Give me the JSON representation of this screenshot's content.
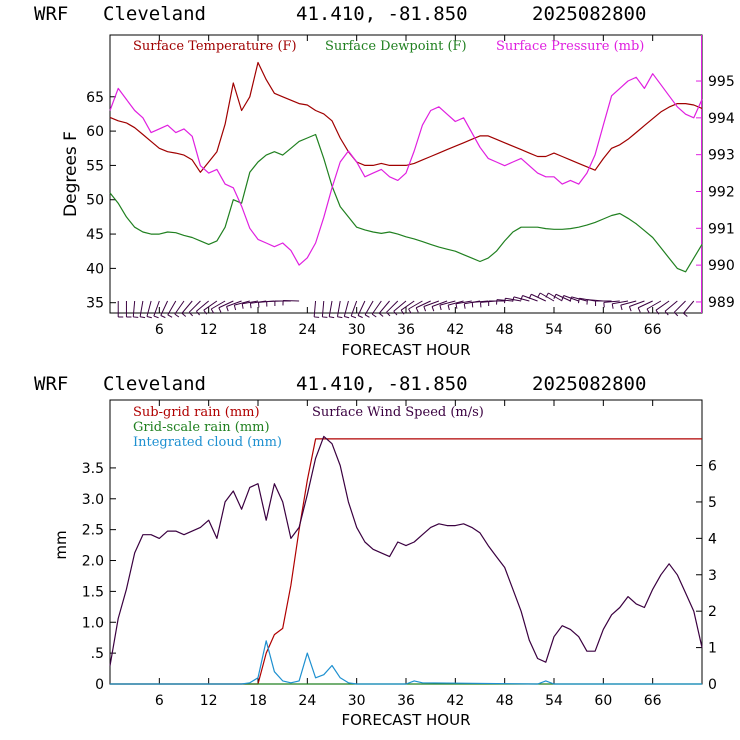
{
  "colors": {
    "temperature": "#a00000",
    "dewpoint": "#208020",
    "pressure": "#e020e0",
    "subgrid": "#b00000",
    "gridscale": "#208020",
    "cloud": "#1e90d0",
    "wind": "#3a0040",
    "barbs": "#3a0040"
  },
  "chart_data": [
    {
      "type": "line",
      "header": {
        "model": "WRF",
        "city": "Cleveland",
        "coords": "41.410, -81.850",
        "run": "2025082800"
      },
      "xlabel": "FORECAST HOUR",
      "ylabel": "Degrees F",
      "xlim": [
        0,
        72
      ],
      "x_ticks": [
        6,
        12,
        18,
        24,
        30,
        36,
        42,
        48,
        54,
        60,
        66
      ],
      "x_tick_labels": [
        "6",
        "12",
        "18",
        "24",
        "30",
        "36",
        "42",
        "48",
        "54",
        "60",
        "66"
      ],
      "ylim_left": [
        33.5,
        74.0
      ],
      "y_ticks_left": [
        35,
        40,
        45,
        50,
        55,
        60,
        65
      ],
      "y_tick_labels_left": [
        "35",
        "40",
        "45",
        "50",
        "55",
        "60",
        "65"
      ],
      "ylim_right": [
        988.7,
        996.25
      ],
      "y_ticks_right": [
        989,
        990,
        991,
        992,
        993,
        994,
        995
      ],
      "y_tick_labels_right": [
        "989",
        "990",
        "991",
        "992",
        "993",
        "994",
        "995"
      ],
      "legend": [
        "Surface Temperature (F)",
        "Surface Dewpoint (F)",
        "Surface Pressure (mb)"
      ],
      "series": [
        {
          "name": "Surface Temperature (F)",
          "axis": "left",
          "color_key": "temperature",
          "x": [
            0,
            1,
            2,
            3,
            4,
            5,
            6,
            7,
            8,
            9,
            10,
            11,
            12,
            13,
            14,
            15,
            16,
            17,
            18,
            19,
            20,
            21,
            22,
            23,
            24,
            25,
            26,
            27,
            28,
            29,
            30,
            31,
            32,
            33,
            34,
            35,
            36,
            37,
            38,
            39,
            40,
            41,
            42,
            43,
            44,
            45,
            46,
            47,
            48,
            49,
            50,
            51,
            52,
            53,
            54,
            55,
            56,
            57,
            58,
            59,
            60,
            61,
            62,
            63,
            64,
            65,
            66,
            67,
            68,
            69,
            70,
            71,
            72
          ],
          "values": [
            62.0,
            61.5,
            61.2,
            60.5,
            59.5,
            58.5,
            57.5,
            57.0,
            56.8,
            56.5,
            55.8,
            54.0,
            55.5,
            57.0,
            61.0,
            67.0,
            63.0,
            65.0,
            70.0,
            67.5,
            65.5,
            65.0,
            64.5,
            64.0,
            63.8,
            63.0,
            62.5,
            61.5,
            59.0,
            57.0,
            55.5,
            55.0,
            55.0,
            55.3,
            55.0,
            55.0,
            55.0,
            55.3,
            55.8,
            56.3,
            56.8,
            57.3,
            57.8,
            58.3,
            58.8,
            59.3,
            59.3,
            58.8,
            58.3,
            57.8,
            57.3,
            56.8,
            56.3,
            56.3,
            56.8,
            56.3,
            55.8,
            55.3,
            54.8,
            54.3,
            56.0,
            57.5,
            58.0,
            58.8,
            59.8,
            60.8,
            61.8,
            62.8,
            63.5,
            64.0,
            64.0,
            63.8,
            63.3
          ]
        },
        {
          "name": "Surface Dewpoint (F)",
          "axis": "left",
          "color_key": "dewpoint",
          "x": [
            0,
            1,
            2,
            3,
            4,
            5,
            6,
            7,
            8,
            9,
            10,
            11,
            12,
            13,
            14,
            15,
            16,
            17,
            18,
            19,
            20,
            21,
            22,
            23,
            24,
            25,
            26,
            27,
            28,
            29,
            30,
            31,
            32,
            33,
            34,
            35,
            36,
            37,
            38,
            39,
            40,
            41,
            42,
            43,
            44,
            45,
            46,
            47,
            48,
            49,
            50,
            51,
            52,
            53,
            54,
            55,
            56,
            57,
            58,
            59,
            60,
            61,
            62,
            63,
            64,
            65,
            66,
            67,
            68,
            69,
            70,
            71,
            72
          ],
          "values": [
            51.0,
            49.5,
            47.5,
            46.0,
            45.3,
            45.0,
            45.0,
            45.3,
            45.2,
            44.8,
            44.5,
            44.0,
            43.5,
            44.0,
            46.0,
            50.0,
            49.5,
            54.0,
            55.5,
            56.5,
            57.0,
            56.5,
            57.5,
            58.5,
            59.0,
            59.5,
            56.0,
            52.0,
            49.0,
            47.5,
            46.0,
            45.6,
            45.3,
            45.1,
            45.3,
            45.0,
            44.6,
            44.3,
            43.9,
            43.5,
            43.1,
            42.8,
            42.5,
            42.0,
            41.5,
            41.0,
            41.5,
            42.5,
            44.0,
            45.3,
            46.0,
            46.0,
            46.0,
            45.8,
            45.7,
            45.7,
            45.8,
            46.0,
            46.3,
            46.7,
            47.2,
            47.7,
            48.0,
            47.3,
            46.5,
            45.5,
            44.5,
            43.0,
            41.5,
            40.0,
            39.5,
            41.5,
            43.5
          ]
        },
        {
          "name": "Surface Pressure (mb)",
          "axis": "right",
          "color_key": "pressure",
          "x": [
            0,
            1,
            2,
            3,
            4,
            5,
            6,
            7,
            8,
            9,
            10,
            11,
            12,
            13,
            14,
            15,
            16,
            17,
            18,
            19,
            20,
            21,
            22,
            23,
            24,
            25,
            26,
            27,
            28,
            29,
            30,
            31,
            32,
            33,
            34,
            35,
            36,
            37,
            38,
            39,
            40,
            41,
            42,
            43,
            44,
            45,
            46,
            47,
            48,
            49,
            50,
            51,
            52,
            53,
            54,
            55,
            56,
            57,
            58,
            59,
            60,
            61,
            62,
            63,
            64,
            65,
            66,
            67,
            68,
            69,
            70,
            71,
            72
          ],
          "values": [
            994.2,
            994.8,
            994.5,
            994.2,
            994.0,
            993.6,
            993.7,
            993.8,
            993.6,
            993.7,
            993.5,
            992.7,
            992.5,
            992.6,
            992.2,
            992.1,
            991.6,
            991.0,
            990.7,
            990.6,
            990.5,
            990.6,
            990.4,
            990.0,
            990.2,
            990.6,
            991.3,
            992.1,
            992.8,
            993.1,
            992.8,
            992.4,
            992.5,
            992.6,
            992.4,
            992.3,
            992.5,
            993.1,
            993.8,
            994.2,
            994.3,
            994.1,
            993.9,
            994.0,
            993.6,
            993.2,
            992.9,
            992.8,
            992.7,
            992.8,
            992.9,
            992.7,
            992.5,
            992.4,
            992.4,
            992.2,
            992.3,
            992.2,
            992.5,
            993.0,
            993.8,
            994.6,
            994.8,
            995.0,
            995.1,
            994.8,
            995.2,
            994.9,
            994.6,
            994.3,
            994.1,
            994.0,
            994.5
          ]
        }
      ],
      "wind_barbs": {
        "x": [
          1,
          2,
          3,
          4,
          5,
          6,
          7,
          8,
          9,
          10,
          11,
          12,
          13,
          14,
          15,
          16,
          17,
          18,
          19,
          20,
          21,
          22,
          23,
          25,
          26,
          27,
          28,
          29,
          30,
          31,
          32,
          33,
          34,
          35,
          36,
          37,
          38,
          39,
          40,
          41,
          42,
          43,
          44,
          45,
          46,
          47,
          48,
          49,
          50,
          51,
          52,
          53,
          54,
          55,
          56,
          57,
          58,
          59,
          60,
          61,
          62,
          63,
          64,
          65,
          66,
          67,
          68,
          69,
          70,
          71
        ],
        "direction_deg": [
          180,
          180,
          185,
          190,
          195,
          200,
          205,
          210,
          215,
          220,
          225,
          230,
          235,
          240,
          245,
          250,
          255,
          260,
          262,
          265,
          268,
          270,
          272,
          185,
          185,
          190,
          190,
          195,
          200,
          205,
          210,
          215,
          220,
          225,
          230,
          235,
          240,
          245,
          250,
          250,
          255,
          255,
          260,
          260,
          265,
          265,
          270,
          275,
          280,
          285,
          290,
          295,
          300,
          300,
          295,
          290,
          285,
          280,
          275,
          270,
          265,
          260,
          255,
          250,
          245,
          240,
          235,
          230,
          225,
          220
        ]
      }
    },
    {
      "type": "line",
      "header": {
        "model": "WRF",
        "city": "Cleveland",
        "coords": "41.410, -81.850",
        "run": "2025082800"
      },
      "xlabel": "FORECAST HOUR",
      "ylabel": "mm",
      "xlim": [
        0,
        72
      ],
      "x_ticks": [
        6,
        12,
        18,
        24,
        30,
        36,
        42,
        48,
        54,
        60,
        66
      ],
      "x_tick_labels": [
        "6",
        "12",
        "18",
        "24",
        "30",
        "36",
        "42",
        "48",
        "54",
        "60",
        "66"
      ],
      "ylim_left": [
        0,
        4.6
      ],
      "y_ticks_left": [
        0,
        0.5,
        1.0,
        1.5,
        2.0,
        2.5,
        3.0,
        3.5
      ],
      "y_tick_labels_left": [
        "0",
        ".5",
        "1.0",
        "1.5",
        "2.0",
        "2.5",
        "3.0",
        "3.5"
      ],
      "ylim_right": [
        0,
        7.8
      ],
      "y_ticks_right": [
        0,
        1,
        2,
        3,
        4,
        5,
        6
      ],
      "y_tick_labels_right": [
        "0",
        "1",
        "2",
        "3",
        "4",
        "5",
        "6"
      ],
      "legend": [
        "Sub-grid rain (mm)",
        "Grid-scale rain (mm)",
        "Integrated cloud (mm)",
        "Surface Wind Speed (m/s)"
      ],
      "series": [
        {
          "name": "Sub-grid rain (mm)",
          "axis": "left",
          "color_key": "subgrid",
          "x": [
            0,
            18,
            19,
            20,
            21,
            22,
            23,
            24,
            25,
            72
          ],
          "values": [
            0,
            0,
            0.5,
            0.8,
            0.9,
            1.6,
            2.5,
            3.3,
            3.97,
            3.97
          ]
        },
        {
          "name": "Grid-scale rain (mm)",
          "axis": "left",
          "color_key": "gridscale",
          "x": [
            0,
            72
          ],
          "values": [
            0,
            0
          ]
        },
        {
          "name": "Integrated cloud (mm)",
          "axis": "left",
          "color_key": "cloud",
          "x": [
            0,
            16,
            17,
            18,
            19,
            20,
            21,
            22,
            23,
            24,
            25,
            26,
            27,
            28,
            29,
            30,
            36,
            37,
            38,
            52,
            53,
            54,
            72
          ],
          "values": [
            0,
            0,
            0.02,
            0.1,
            0.7,
            0.2,
            0.05,
            0.02,
            0.05,
            0.5,
            0.1,
            0.15,
            0.3,
            0.1,
            0.02,
            0,
            0,
            0.05,
            0.02,
            0,
            0.05,
            0,
            0
          ]
        },
        {
          "name": "Surface Wind Speed (m/s)",
          "axis": "right",
          "color_key": "wind",
          "x": [
            0,
            1,
            2,
            3,
            4,
            5,
            6,
            7,
            8,
            9,
            10,
            11,
            12,
            13,
            14,
            15,
            16,
            17,
            18,
            19,
            20,
            21,
            22,
            23,
            24,
            25,
            26,
            27,
            28,
            29,
            30,
            31,
            32,
            33,
            34,
            35,
            36,
            37,
            38,
            39,
            40,
            41,
            42,
            43,
            44,
            45,
            46,
            47,
            48,
            49,
            50,
            51,
            52,
            53,
            54,
            55,
            56,
            57,
            58,
            59,
            60,
            61,
            62,
            63,
            64,
            65,
            66,
            67,
            68,
            69,
            70,
            71,
            72
          ],
          "values": [
            0.5,
            1.8,
            2.6,
            3.6,
            4.1,
            4.1,
            4.0,
            4.2,
            4.2,
            4.1,
            4.2,
            4.3,
            4.5,
            4.0,
            5.0,
            5.3,
            4.8,
            5.4,
            5.5,
            4.5,
            5.5,
            5.0,
            4.0,
            4.3,
            5.2,
            6.2,
            6.8,
            6.6,
            6.0,
            5.0,
            4.3,
            3.9,
            3.7,
            3.6,
            3.5,
            3.9,
            3.8,
            3.9,
            4.1,
            4.3,
            4.4,
            4.35,
            4.35,
            4.4,
            4.3,
            4.15,
            3.8,
            3.5,
            3.2,
            2.6,
            2.0,
            1.2,
            0.7,
            0.6,
            1.3,
            1.6,
            1.5,
            1.3,
            0.9,
            0.9,
            1.5,
            1.9,
            2.1,
            2.4,
            2.2,
            2.1,
            2.6,
            3.0,
            3.3,
            3.0,
            2.5,
            2.0,
            1.0
          ]
        }
      ]
    }
  ]
}
